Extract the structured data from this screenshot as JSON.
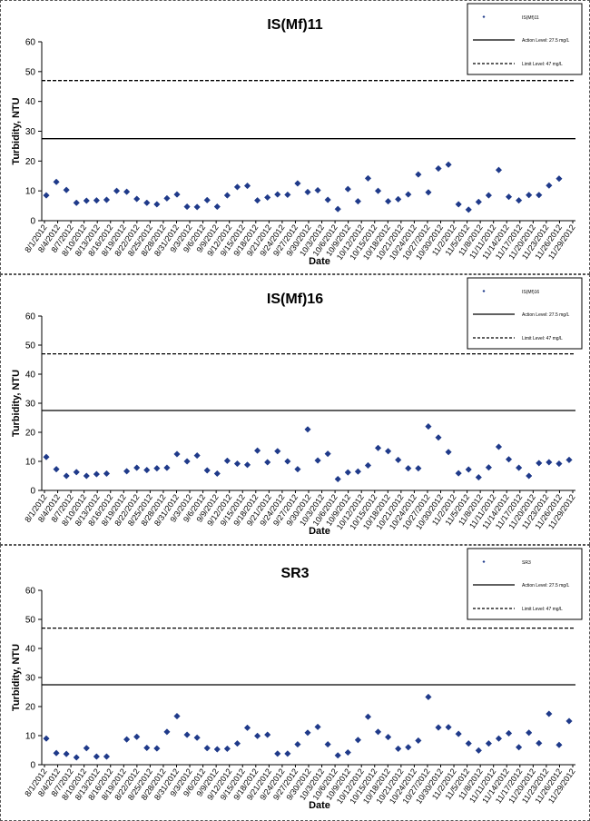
{
  "x_labels": [
    "8/1/2012",
    "8/4/2012",
    "8/7/2012",
    "8/10/2012",
    "8/13/2012",
    "8/16/2012",
    "8/19/2012",
    "8/22/2012",
    "8/25/2012",
    "8/28/2012",
    "8/31/2012",
    "9/3/2012",
    "9/6/2012",
    "9/9/2012",
    "9/12/2012",
    "9/15/2012",
    "9/18/2012",
    "9/21/2012",
    "9/24/2012",
    "9/27/2012",
    "9/30/2012",
    "10/3/2012",
    "10/6/2012",
    "10/9/2012",
    "10/12/2012",
    "10/15/2012",
    "10/18/2012",
    "10/21/2012",
    "10/24/2012",
    "10/27/2012",
    "10/30/2012",
    "11/2/2012",
    "11/5/2012",
    "11/8/2012",
    "11/11/2012",
    "11/14/2012",
    "11/17/2012",
    "11/20/2012",
    "11/23/2012",
    "11/26/2012",
    "11/29/2012"
  ],
  "chart_data": [
    {
      "type": "scatter",
      "title": "IS(Mf)11",
      "xlabel": "Date",
      "ylabel": "Turbidity, NTU",
      "ylim": [
        0,
        60
      ],
      "yticks": [
        0,
        10,
        20,
        30,
        40,
        50,
        60
      ],
      "legend_position": "top-right",
      "series": [
        {
          "name": "IS(Mf)11",
          "color": "#1f3a8a",
          "marker": "diamond",
          "points": [
            [
              0,
              8.5
            ],
            [
              1,
              13
            ],
            [
              2,
              10.3
            ],
            [
              3,
              6
            ],
            [
              4,
              6.7
            ],
            [
              5,
              6.8
            ],
            [
              6,
              7
            ],
            [
              7,
              10
            ],
            [
              8,
              9.7
            ],
            [
              9,
              7.3
            ],
            [
              10,
              6
            ],
            [
              11,
              5.5
            ],
            [
              12,
              7.5
            ],
            [
              13,
              8.8
            ],
            [
              14,
              4.7
            ],
            [
              15,
              4.6
            ],
            [
              16,
              6.9
            ],
            [
              17,
              4.7
            ],
            [
              18,
              8.5
            ],
            [
              19,
              11.3
            ],
            [
              20,
              11.7
            ],
            [
              21,
              6.8
            ],
            [
              22,
              7.8
            ],
            [
              23,
              8.8
            ],
            [
              24,
              8.7
            ],
            [
              25,
              12.5
            ],
            [
              26,
              9.6
            ],
            [
              27,
              10.2
            ],
            [
              28,
              7
            ],
            [
              29,
              3.9
            ],
            [
              30,
              10.6
            ],
            [
              31,
              6.5
            ],
            [
              32,
              14.2
            ],
            [
              33,
              10
            ],
            [
              34,
              6.5
            ],
            [
              35,
              7.2
            ],
            [
              36,
              8.8
            ],
            [
              37,
              15.5
            ],
            [
              38,
              9.5
            ],
            [
              39,
              17.5
            ],
            [
              40,
              18.8
            ],
            [
              41,
              5.5
            ],
            [
              42,
              3.7
            ],
            [
              43,
              6.3
            ],
            [
              44,
              8.5
            ],
            [
              45,
              17
            ],
            [
              46,
              8
            ],
            [
              47,
              6.8
            ],
            [
              48,
              8.6
            ],
            [
              49,
              8.6
            ],
            [
              50,
              11.8
            ],
            [
              51,
              14.1
            ]
          ]
        }
      ],
      "reference_lines": [
        {
          "name": "Action Level: 27.5 mg/L",
          "value": 27.5,
          "style": "solid"
        },
        {
          "name": "Limit Level: 47 mg/L",
          "value": 47,
          "style": "dashed"
        }
      ]
    },
    {
      "type": "scatter",
      "title": "IS(Mf)16",
      "xlabel": "Date",
      "ylabel": "Turbidity, NTU",
      "ylim": [
        0,
        60
      ],
      "yticks": [
        0,
        10,
        20,
        30,
        40,
        50,
        60
      ],
      "legend_position": "top-right",
      "series": [
        {
          "name": "IS(Mf)16",
          "color": "#1f3a8a",
          "marker": "diamond",
          "points": [
            [
              0,
              11.5
            ],
            [
              1,
              7.3
            ],
            [
              2,
              5
            ],
            [
              3,
              6.3
            ],
            [
              4,
              5
            ],
            [
              5,
              5.6
            ],
            [
              6,
              5.8
            ],
            [
              8,
              6.6
            ],
            [
              9,
              7.8
            ],
            [
              10,
              7
            ],
            [
              11,
              7.6
            ],
            [
              12,
              7.8
            ],
            [
              13,
              12.5
            ],
            [
              14,
              10
            ],
            [
              15,
              12
            ],
            [
              16,
              6.9
            ],
            [
              17,
              5.8
            ],
            [
              18,
              10.2
            ],
            [
              19,
              9.2
            ],
            [
              20,
              8.8
            ],
            [
              21,
              13.7
            ],
            [
              22,
              9.7
            ],
            [
              23,
              13.5
            ],
            [
              24,
              10
            ],
            [
              25,
              7.3
            ],
            [
              26,
              21
            ],
            [
              27,
              10.3
            ],
            [
              28,
              12.6
            ],
            [
              29,
              3.9
            ],
            [
              30,
              6.2
            ],
            [
              31,
              6.5
            ],
            [
              32,
              8.6
            ],
            [
              33,
              14.6
            ],
            [
              34,
              13.5
            ],
            [
              35,
              10.5
            ],
            [
              36,
              7.6
            ],
            [
              37,
              7.6
            ],
            [
              38,
              22
            ],
            [
              39,
              18.2
            ],
            [
              40,
              13.2
            ],
            [
              41,
              5.9
            ],
            [
              42,
              7.2
            ],
            [
              43,
              4.5
            ],
            [
              44,
              7.9
            ],
            [
              45,
              15
            ],
            [
              46,
              10.7
            ],
            [
              47,
              7.8
            ],
            [
              48,
              5
            ],
            [
              49,
              9.4
            ],
            [
              50,
              9.7
            ],
            [
              51,
              9.2
            ],
            [
              52,
              10.5
            ]
          ]
        }
      ],
      "reference_lines": [
        {
          "name": "Action Level: 27.5 mg/L",
          "value": 27.5,
          "style": "solid"
        },
        {
          "name": "Limit Level: 47 mg/L",
          "value": 47,
          "style": "dashed"
        }
      ]
    },
    {
      "type": "scatter",
      "title": "SR3",
      "xlabel": "Date",
      "ylabel": "Turbidity, NTU",
      "ylim": [
        0,
        60
      ],
      "yticks": [
        0,
        10,
        20,
        30,
        40,
        50,
        60
      ],
      "legend_position": "top-right",
      "series": [
        {
          "name": "SR3",
          "color": "#1f3a8a",
          "marker": "diamond",
          "points": [
            [
              0,
              9
            ],
            [
              1,
              4
            ],
            [
              2,
              3.7
            ],
            [
              3,
              2.5
            ],
            [
              4,
              5.7
            ],
            [
              5,
              2.8
            ],
            [
              6,
              2.8
            ],
            [
              8,
              8.7
            ],
            [
              9,
              9.6
            ],
            [
              10,
              5.8
            ],
            [
              11,
              5.6
            ],
            [
              12,
              11.3
            ],
            [
              13,
              16.7
            ],
            [
              14,
              10.3
            ],
            [
              15,
              9.3
            ],
            [
              16,
              5.7
            ],
            [
              17,
              5.3
            ],
            [
              18,
              5.5
            ],
            [
              19,
              7.3
            ],
            [
              20,
              12.7
            ],
            [
              21,
              9.9
            ],
            [
              22,
              10.3
            ],
            [
              23,
              3.8
            ],
            [
              24,
              3.8
            ],
            [
              25,
              7
            ],
            [
              26,
              11
            ],
            [
              27,
              13
            ],
            [
              28,
              7
            ],
            [
              29,
              3.2
            ],
            [
              30,
              4.2
            ],
            [
              31,
              8.5
            ],
            [
              32,
              16.5
            ],
            [
              33,
              11.3
            ],
            [
              34,
              9.5
            ],
            [
              35,
              5.5
            ],
            [
              36,
              6
            ],
            [
              37,
              8.3
            ],
            [
              38,
              23.3
            ],
            [
              39,
              12.8
            ],
            [
              40,
              12.9
            ],
            [
              41,
              10.6
            ],
            [
              42,
              7.3
            ],
            [
              43,
              4.9
            ],
            [
              44,
              7.3
            ],
            [
              45,
              9
            ],
            [
              46,
              10.8
            ],
            [
              47,
              6
            ],
            [
              48,
              11
            ],
            [
              49,
              7.4
            ],
            [
              50,
              17.5
            ],
            [
              51,
              6.8
            ],
            [
              52,
              15
            ]
          ]
        }
      ],
      "reference_lines": [
        {
          "name": "Action Level: 27.5 mg/L",
          "value": 27.5,
          "style": "solid"
        },
        {
          "name": "Limit Level: 47 mg/L",
          "value": 47,
          "style": "dashed"
        }
      ]
    }
  ]
}
